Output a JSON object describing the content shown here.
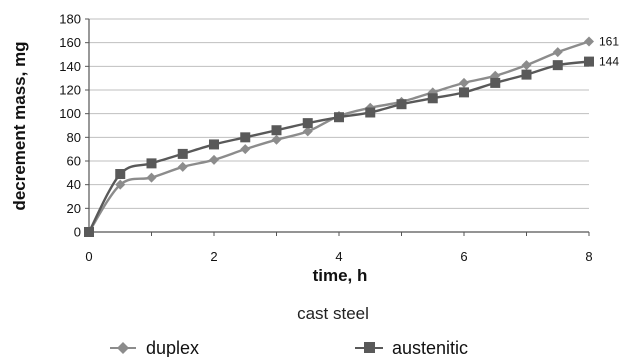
{
  "chart_data": {
    "type": "line",
    "xlabel": "time, h",
    "ylabel": "decrement mass, mg",
    "caption": "cast steel",
    "xlim": [
      0,
      8
    ],
    "ylim": [
      0,
      180
    ],
    "xticks": [
      0,
      2,
      4,
      6,
      8
    ],
    "yticks": [
      0,
      20,
      40,
      60,
      80,
      100,
      120,
      140,
      160,
      180
    ],
    "grid": "horizontal",
    "legend": "bottom",
    "series": [
      {
        "name": "duplex",
        "marker": "diamond",
        "color": "#8c8c8c",
        "x": [
          0,
          0.5,
          1,
          1.5,
          2,
          2.5,
          3,
          3.5,
          4,
          4.5,
          5,
          5.5,
          6,
          6.5,
          7,
          7.5,
          8
        ],
        "y": [
          0,
          40,
          46,
          55,
          61,
          70,
          78,
          85,
          98,
          105,
          110,
          118,
          126,
          132,
          141,
          152,
          161
        ],
        "end_label": "161"
      },
      {
        "name": "austenitic",
        "marker": "square",
        "color": "#595959",
        "x": [
          0,
          0.5,
          1,
          1.5,
          2,
          2.5,
          3,
          3.5,
          4,
          4.5,
          5,
          5.5,
          6,
          6.5,
          7,
          7.5,
          8
        ],
        "y": [
          0,
          49,
          58,
          66,
          74,
          80,
          86,
          92,
          97,
          101,
          108,
          113,
          118,
          126,
          133,
          141,
          144
        ],
        "end_label": "144"
      }
    ]
  }
}
